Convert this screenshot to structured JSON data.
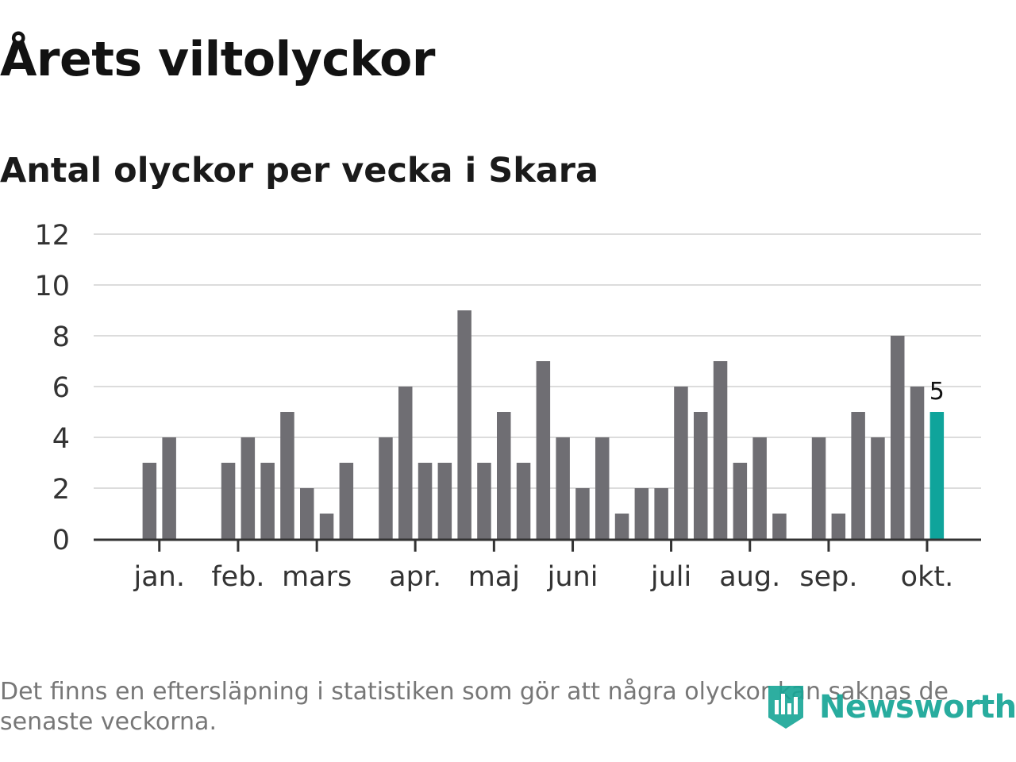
{
  "title": "Årets viltolyckor",
  "subtitle": "Antal olyckor per vecka i Skara",
  "note": "Det finns en eftersläpning i statistiken som gör att några olyckor kan saknas de senaste veckorna.",
  "logo": {
    "text": "Newsworthy",
    "icon": "newsworthy-logo-icon"
  },
  "colors": {
    "bar": "#6f6e73",
    "highlight": "#0fa49b",
    "grid": "#dcdcdc",
    "axis": "#333333",
    "text": "#333333"
  },
  "chart_data": {
    "type": "bar",
    "title": "Antal olyckor per vecka i Skara",
    "xlabel": "",
    "ylabel": "",
    "ylim": [
      0,
      12
    ],
    "yticks": [
      0,
      2,
      4,
      6,
      8,
      10,
      12
    ],
    "grid": true,
    "weeks": [
      1,
      2,
      3,
      4,
      5,
      6,
      7,
      8,
      9,
      10,
      11,
      12,
      13,
      14,
      15,
      16,
      17,
      18,
      19,
      20,
      21,
      22,
      23,
      24,
      25,
      26,
      27,
      28,
      29,
      30,
      31,
      32,
      33,
      34,
      35,
      36,
      37,
      38,
      39,
      40,
      41,
      42,
      43,
      44,
      45
    ],
    "values": [
      0,
      0,
      3,
      4,
      0,
      0,
      3,
      4,
      3,
      5,
      2,
      1,
      3,
      0,
      4,
      6,
      3,
      3,
      9,
      3,
      5,
      3,
      7,
      4,
      2,
      4,
      1,
      2,
      2,
      6,
      5,
      7,
      3,
      4,
      1,
      0,
      4,
      1,
      5,
      4,
      8,
      6,
      5,
      0,
      0
    ],
    "highlight_week": 43,
    "highlight_label": "5",
    "month_labels": [
      {
        "label": "jan.",
        "week": 3.5
      },
      {
        "label": "feb.",
        "week": 7.5
      },
      {
        "label": "mars",
        "week": 11.5
      },
      {
        "label": "apr.",
        "week": 16.5
      },
      {
        "label": "maj",
        "week": 20.5
      },
      {
        "label": "juni",
        "week": 24.5
      },
      {
        "label": "juli",
        "week": 29.5
      },
      {
        "label": "aug.",
        "week": 33.5
      },
      {
        "label": "sep.",
        "week": 37.5
      },
      {
        "label": "okt.",
        "week": 42.5
      }
    ]
  }
}
